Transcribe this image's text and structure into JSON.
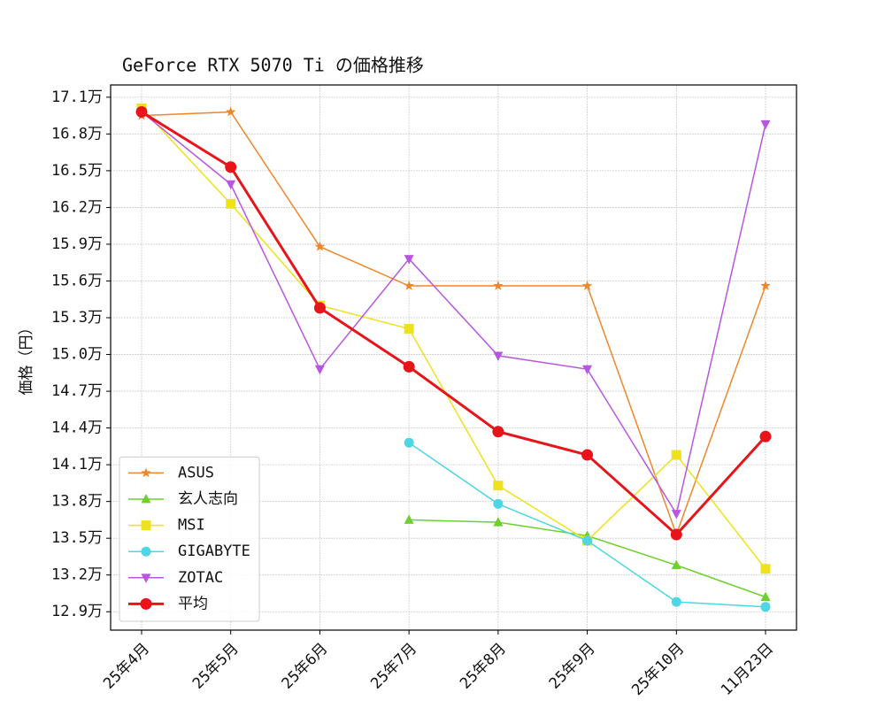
{
  "chart_data": {
    "type": "line",
    "title": "GeForce RTX 5070 Ti の価格推移",
    "y_label": "価格（円）",
    "categories": [
      "25年4月",
      "25年5月",
      "25年6月",
      "25年7月",
      "25年8月",
      "25年9月",
      "25年10月",
      "11月23日"
    ],
    "series": [
      {
        "name": "ASUS",
        "color": "#f0862a",
        "marker": "star",
        "values": [
          169500,
          169800,
          158800,
          155600,
          155600,
          155600,
          135300,
          155600
        ]
      },
      {
        "name": "玄人志向",
        "color": "#6fcf2f",
        "marker": "triangle-up",
        "values": [
          null,
          null,
          null,
          136500,
          136300,
          135200,
          132800,
          130200
        ]
      },
      {
        "name": "MSI",
        "color": "#eee21d",
        "marker": "square",
        "values": [
          170100,
          162300,
          154000,
          152100,
          139300,
          134800,
          141800,
          132500
        ]
      },
      {
        "name": "GIGABYTE",
        "color": "#4dd6e3",
        "marker": "circle",
        "values": [
          null,
          null,
          null,
          142800,
          137800,
          134800,
          129800,
          129400
        ]
      },
      {
        "name": "ZOTAC",
        "color": "#b956e0",
        "marker": "triangle-down",
        "values": [
          169800,
          163900,
          148800,
          157800,
          149900,
          148800,
          137000,
          168800
        ]
      },
      {
        "name": "平均",
        "color": "#e8141a",
        "marker": "circle",
        "bold": true,
        "values": [
          169800,
          165300,
          153800,
          149000,
          143700,
          141800,
          135300,
          143300
        ]
      }
    ],
    "ylim": [
      127500,
      172000
    ],
    "yticks": [
      {
        "value": 129000,
        "label": "12.9万"
      },
      {
        "value": 132000,
        "label": "13.2万"
      },
      {
        "value": 135000,
        "label": "13.5万"
      },
      {
        "value": 138000,
        "label": "13.8万"
      },
      {
        "value": 141000,
        "label": "14.1万"
      },
      {
        "value": 144000,
        "label": "14.4万"
      },
      {
        "value": 147000,
        "label": "14.7万"
      },
      {
        "value": 150000,
        "label": "15.0万"
      },
      {
        "value": 153000,
        "label": "15.3万"
      },
      {
        "value": 156000,
        "label": "15.6万"
      },
      {
        "value": 159000,
        "label": "15.9万"
      },
      {
        "value": 162000,
        "label": "16.2万"
      },
      {
        "value": 165000,
        "label": "16.5万"
      },
      {
        "value": 168000,
        "label": "16.8万"
      },
      {
        "value": 171000,
        "label": "17.1万"
      }
    ],
    "grid": true,
    "legend": "lower left"
  }
}
